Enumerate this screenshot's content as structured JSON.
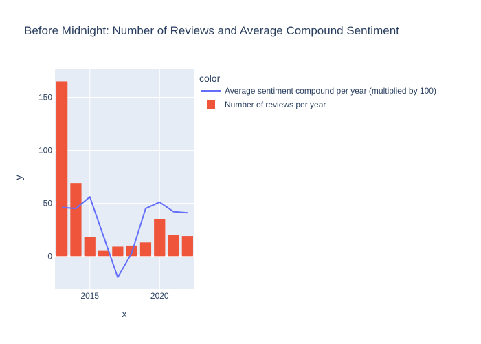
{
  "chart_data": {
    "type": "bar+line",
    "title": "Before Midnight: Number of Reviews and Average Compound Sentiment",
    "xlabel": "x",
    "ylabel": "y",
    "x": [
      2013,
      2014,
      2015,
      2016,
      2017,
      2018,
      2019,
      2020,
      2021,
      2022
    ],
    "xlim": [
      2012.5,
      2022.5
    ],
    "ylim": [
      -31,
      177
    ],
    "x_ticks": [
      2015,
      2020
    ],
    "y_ticks": [
      0,
      50,
      100,
      150
    ],
    "x_tick_labels": [
      "2015",
      "2020"
    ],
    "y_tick_labels": [
      "0",
      "50",
      "100",
      "150"
    ],
    "legend": {
      "title": "color",
      "placement": "right"
    },
    "series": [
      {
        "name": "Average sentiment compound per year (multiplied by 100)",
        "type": "line",
        "color": "#636efa",
        "values": [
          46,
          45,
          56,
          18,
          -20,
          3,
          45,
          51,
          42,
          41
        ]
      },
      {
        "name": "Number of reviews per year",
        "type": "bar",
        "color": "#ef553b",
        "values": [
          165,
          69,
          18,
          5,
          9,
          10,
          13,
          35,
          20,
          19
        ]
      }
    ],
    "plot_bgcolor": "#e5ecf6",
    "grid": true
  }
}
